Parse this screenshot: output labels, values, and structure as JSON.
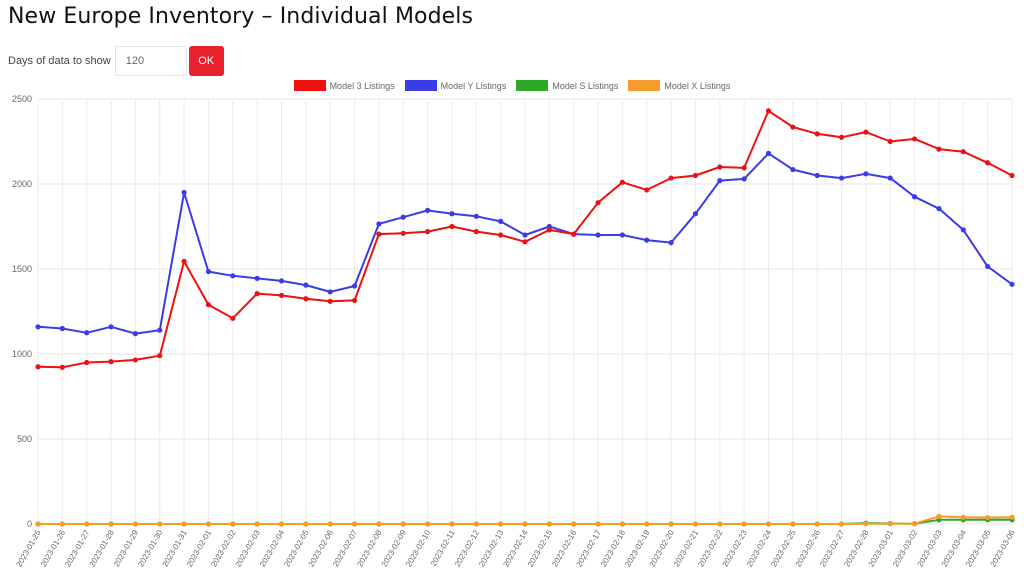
{
  "page": {
    "title": "New Europe Inventory – Individual Models",
    "days_label": "Days of data to show",
    "days_value": "120",
    "ok_label": "OK"
  },
  "chart_data": {
    "type": "line",
    "title": "",
    "xlabel": "",
    "ylabel": "",
    "ylim": [
      0,
      2500
    ],
    "yticks": [
      0,
      500,
      1000,
      1500,
      2000,
      2500
    ],
    "grid": true,
    "legend_position": "top",
    "x": [
      "2023-01-25",
      "2023-01-26",
      "2023-01-27",
      "2023-01-28",
      "2023-01-29",
      "2023-01-30",
      "2023-01-31",
      "2023-02-01",
      "2023-02-02",
      "2023-02-03",
      "2023-02-04",
      "2023-02-05",
      "2023-02-06",
      "2023-02-07",
      "2023-02-08",
      "2023-02-09",
      "2023-02-10",
      "2023-02-11",
      "2023-02-12",
      "2023-02-13",
      "2023-02-14",
      "2023-02-15",
      "2023-02-16",
      "2023-02-17",
      "2023-02-18",
      "2023-02-19",
      "2023-02-20",
      "2023-02-21",
      "2023-02-22",
      "2023-02-23",
      "2023-02-24",
      "2023-02-25",
      "2023-02-26",
      "2023-02-27",
      "2023-02-28",
      "2023-03-01",
      "2023-03-02",
      "2023-03-03",
      "2023-03-04",
      "2023-03-05",
      "2023-03-06"
    ],
    "series": [
      {
        "name": "Model 3 Listings",
        "color": "#ee1111",
        "values": [
          925,
          922,
          950,
          955,
          965,
          990,
          1545,
          1290,
          1210,
          1355,
          1345,
          1325,
          1310,
          1315,
          1705,
          1710,
          1720,
          1750,
          1720,
          1700,
          1660,
          1730,
          1705,
          1890,
          2010,
          1965,
          2035,
          2050,
          2100,
          2095,
          2430,
          2335,
          2295,
          2275,
          2305,
          2250,
          2265,
          2205,
          2190,
          2125,
          2050
        ]
      },
      {
        "name": "Model Y Listings",
        "color": "#3b3be8",
        "values": [
          1160,
          1150,
          1125,
          1160,
          1120,
          1140,
          1950,
          1485,
          1460,
          1445,
          1430,
          1405,
          1365,
          1400,
          1765,
          1805,
          1845,
          1825,
          1810,
          1780,
          1700,
          1750,
          1705,
          1700,
          1700,
          1670,
          1655,
          1825,
          2020,
          2030,
          2180,
          2085,
          2050,
          2035,
          2060,
          2035,
          1925,
          1855,
          1730,
          1515,
          1410
        ]
      },
      {
        "name": "Model S Listings",
        "color": "#2ea827",
        "values": [
          0,
          0,
          0,
          0,
          0,
          0,
          0,
          0,
          0,
          0,
          0,
          0,
          0,
          0,
          0,
          0,
          0,
          0,
          0,
          0,
          0,
          0,
          0,
          0,
          0,
          0,
          0,
          0,
          0,
          0,
          0,
          0,
          0,
          0,
          5,
          3,
          2,
          25,
          25,
          25,
          25
        ]
      },
      {
        "name": "Model X Listings",
        "color": "#f59c2a",
        "values": [
          0,
          0,
          0,
          0,
          0,
          0,
          0,
          0,
          0,
          0,
          0,
          0,
          0,
          0,
          0,
          0,
          0,
          0,
          0,
          0,
          0,
          0,
          0,
          0,
          0,
          0,
          0,
          0,
          0,
          0,
          0,
          0,
          0,
          0,
          2,
          2,
          2,
          45,
          40,
          38,
          40
        ]
      }
    ]
  }
}
